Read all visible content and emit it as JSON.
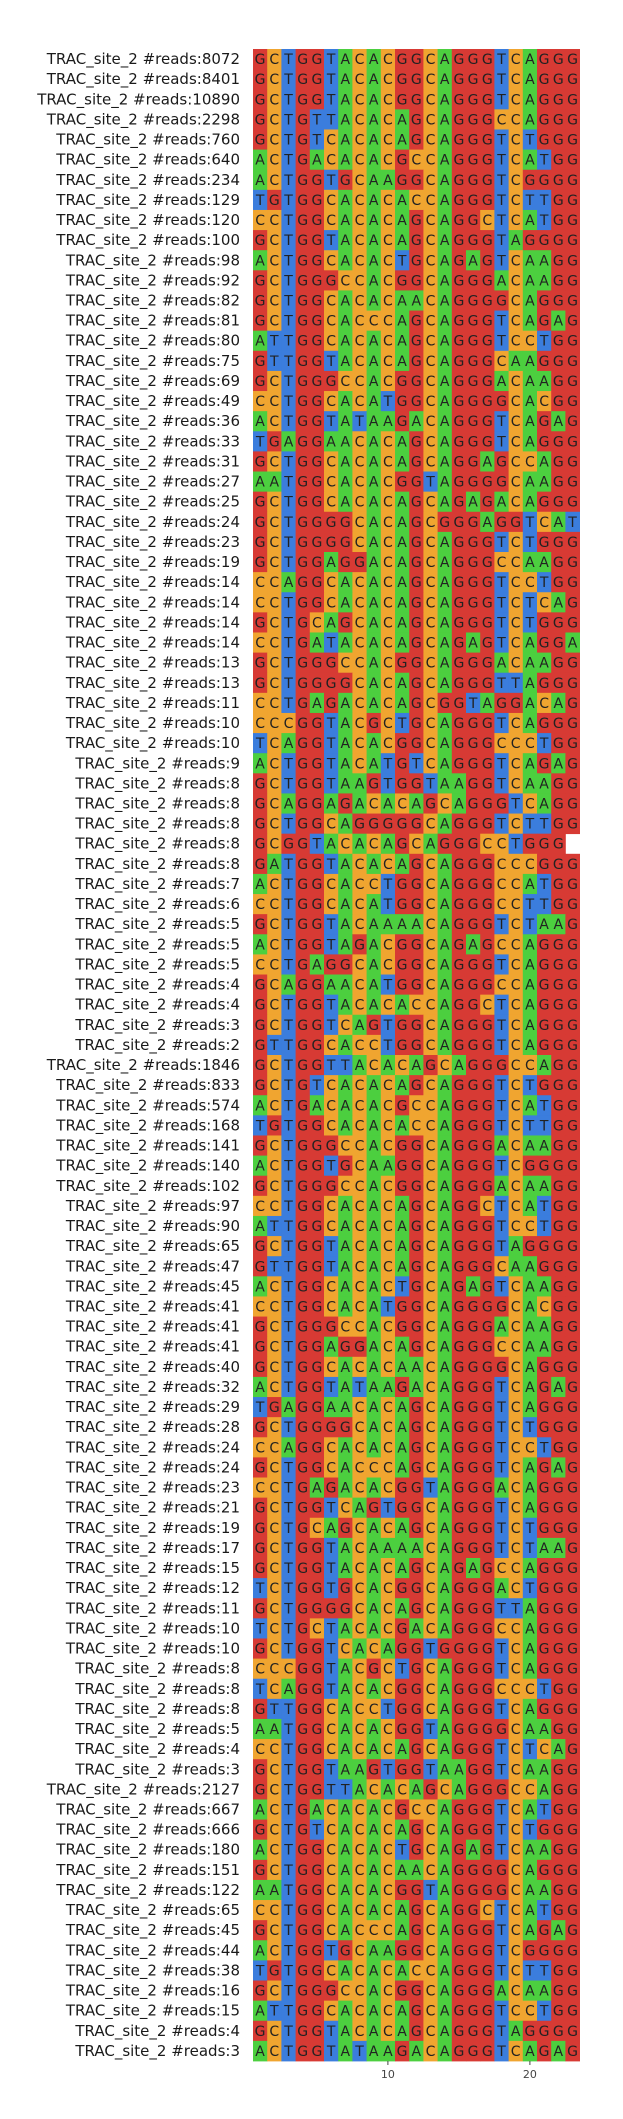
{
  "chart_data": {
    "type": "heatmap",
    "title": "",
    "xlabel": "",
    "ylabel": "",
    "x_ticks": [
      10,
      20
    ],
    "colors": {
      "A": "#4ccf3f",
      "C": "#f0a530",
      "G": "#d73a34",
      "T": "#3b7ddd"
    },
    "rows": [
      {
        "label": "TRAC_site_2 #reads:8072",
        "seq": "GCTGGTACACGGCAGGGTCAGGG"
      },
      {
        "label": "TRAC_site_2 #reads:8401",
        "seq": "GCTGGTACACGGCAGGGTCAGGG"
      },
      {
        "label": "TRAC_site_2 #reads:10890",
        "seq": "GCTGGTACACGGCAGGGTCAGGG"
      },
      {
        "label": "TRAC_site_2 #reads:2298",
        "seq": "GCTGTTACACAGCAGGGCCAGGG"
      },
      {
        "label": "TRAC_site_2 #reads:760",
        "seq": "GCTGTCACACAGCAGGGTCTGGG"
      },
      {
        "label": "TRAC_site_2 #reads:640",
        "seq": "ACTGACACACGCCAGGGTCATGG"
      },
      {
        "label": "TRAC_site_2 #reads:234",
        "seq": "ACTGGTGCAAGGCAGGGTCGGGG"
      },
      {
        "label": "TRAC_site_2 #reads:129",
        "seq": "TGTGGCACACACCAGGGTCTTGG"
      },
      {
        "label": "TRAC_site_2 #reads:120",
        "seq": "CCTGGCACACAGCAGGCTCATGG"
      },
      {
        "label": "TRAC_site_2 #reads:100",
        "seq": "GCTGGTACACAGCAGGGTAGGGG"
      },
      {
        "label": "TRAC_site_2 #reads:98",
        "seq": "ACTGGCACACTGCAGAGTCAAGG"
      },
      {
        "label": "TRAC_site_2 #reads:92",
        "seq": "GCTGGGCCACGGCAGGGACAAGG"
      },
      {
        "label": "TRAC_site_2 #reads:82",
        "seq": "GCTGGCACACAACAGGGGCAGGG"
      },
      {
        "label": "TRAC_site_2 #reads:81",
        "seq": "GCTGGCACCCAGCAGGGTCAGAG"
      },
      {
        "label": "TRAC_site_2 #reads:80",
        "seq": "ATTGGCACACAGCAGGGTCCTGG"
      },
      {
        "label": "TRAC_site_2 #reads:75",
        "seq": "GTTGGTACACAGCAGGGCAAGGG"
      },
      {
        "label": "TRAC_site_2 #reads:69",
        "seq": "GCTGGGCCACGGCAGGGACAAGG"
      },
      {
        "label": "TRAC_site_2 #reads:49",
        "seq": "CCTGGCACATGGCAGGGGCACGG"
      },
      {
        "label": "TRAC_site_2 #reads:36",
        "seq": "ACTGGTATAAGACAGGGTCAGAG"
      },
      {
        "label": "TRAC_site_2 #reads:33",
        "seq": "TGAGGAACACAGCAGGGTCAGGG"
      },
      {
        "label": "TRAC_site_2 #reads:31",
        "seq": "GCTGGCACACAGCAGGAGCCAGG"
      },
      {
        "label": "TRAC_site_2 #reads:27",
        "seq": "AATGGCACACGGTAGGGGCAAGG"
      },
      {
        "label": "TRAC_site_2 #reads:25",
        "seq": "GCTGGCACACAGCAGAGACAGGG"
      },
      {
        "label": "TRAC_site_2 #reads:24",
        "seq": "GCTGGGGCACAGCGGGAGGTCATGG"
      },
      {
        "label": "TRAC_site_2 #reads:23",
        "seq": "GCTGGGGCACAGCAGGGTCTGGG"
      },
      {
        "label": "TRAC_site_2 #reads:19",
        "seq": "GCTGGAGGACAGCAGGGCCAAGG"
      },
      {
        "label": "TRAC_site_2 #reads:14",
        "seq": "CCAGGCACACAGCAGGGTCCTGG"
      },
      {
        "label": "TRAC_site_2 #reads:14",
        "seq": "CCTGGCACACAGCAGGGTCTCAG"
      },
      {
        "label": "TRAC_site_2 #reads:14",
        "seq": "GCTGCAGCACAGCAGGGTCTGGG"
      },
      {
        "label": "TRAC_site_2 #reads:14",
        "seq": "CCTGATACACAGCAGAGTCAGGA"
      },
      {
        "label": "TRAC_site_2 #reads:13",
        "seq": "GCTGGGCCACGGCAGGGACAAGG"
      },
      {
        "label": "TRAC_site_2 #reads:13",
        "seq": "GCTGGGGCACAGCAGGGTTAGGG"
      },
      {
        "label": "TRAC_site_2 #reads:11",
        "seq": "CCTGAGACACAGCGGTAGGACAGGG"
      },
      {
        "label": "TRAC_site_2 #reads:10",
        "seq": "CCCGGTACGCTGCAGGGTCAGGG"
      },
      {
        "label": "TRAC_site_2 #reads:10",
        "seq": "TCAGGTACACGGCAGGGCCCTGG"
      },
      {
        "label": "TRAC_site_2 #reads:9",
        "seq": "ACTGGTACATGTCAGGGTCAGAG"
      },
      {
        "label": "TRAC_site_2 #reads:8",
        "seq": "GCTGGTAAGTGGTAAGGTCAAGG"
      },
      {
        "label": "TRAC_site_2 #reads:8",
        "seq": "GCAGGAGACACAGCAGGGTCAGGG"
      },
      {
        "label": "TRAC_site_2 #reads:8",
        "seq": "GCTGGCAGGGGGCAGGGTCTTGG"
      },
      {
        "label": "TRAC_site_2 #reads:8",
        "seq": "GCGGTACACAGCAGGGCCTGGG"
      },
      {
        "label": "TRAC_site_2 #reads:8",
        "seq": "GATGGTACACAGCAGGGCCCGGG"
      },
      {
        "label": "TRAC_site_2 #reads:7",
        "seq": "ACTGGCACCTGGCAGGGCCATGG"
      },
      {
        "label": "TRAC_site_2 #reads:6",
        "seq": "CCTGGCACATGGCAGGGCCTTGG"
      },
      {
        "label": "TRAC_site_2 #reads:5",
        "seq": "GCTGGTACAAAACAGGGTCTAAG"
      },
      {
        "label": "TRAC_site_2 #reads:5",
        "seq": "ACTGGTAGACGGCAGAGCCAGGG"
      },
      {
        "label": "TRAC_site_2 #reads:5",
        "seq": "CCTGAGGCACGGCAGGGTCAGGG"
      },
      {
        "label": "TRAC_site_2 #reads:4",
        "seq": "GCAGGAACATGGCAGGGCCAGGG"
      },
      {
        "label": "TRAC_site_2 #reads:4",
        "seq": "GCTGGTACACACCAGGCTCAGGG"
      },
      {
        "label": "TRAC_site_2 #reads:3",
        "seq": "GCTGGTCAGTGGCAGGGTCAGGG"
      },
      {
        "label": "TRAC_site_2 #reads:2",
        "seq": "GTTGGCACCTGGCAGGGTCAGGG"
      },
      {
        "label": "TRAC_site_2 #reads:1846",
        "seq": "GCTGGTTACACAGCAGGGCCAGGG"
      },
      {
        "label": "TRAC_site_2 #reads:833",
        "seq": "GCTGTCACACAGCAGGGTCTGGG"
      },
      {
        "label": "TRAC_site_2 #reads:574",
        "seq": "ACTGACACACGCCAGGGTCATGG"
      },
      {
        "label": "TRAC_site_2 #reads:168",
        "seq": "TGTGGCACACACCAGGGTCTTGG"
      },
      {
        "label": "TRAC_site_2 #reads:141",
        "seq": "GCTGGGCCACGGCAGGGACAAGG"
      },
      {
        "label": "TRAC_site_2 #reads:140",
        "seq": "ACTGGTGCAAGGCAGGGTCGGGG"
      },
      {
        "label": "TRAC_site_2 #reads:102",
        "seq": "GCTGGGCCACGGCAGGGACAAGG"
      },
      {
        "label": "TRAC_site_2 #reads:97",
        "seq": "CCTGGCACACAGCAGGCTCATGG"
      },
      {
        "label": "TRAC_site_2 #reads:90",
        "seq": "ATTGGCACACAGCAGGGTCCTGG"
      },
      {
        "label": "TRAC_site_2 #reads:65",
        "seq": "GCTGGTACACAGCAGGGTAGGGG"
      },
      {
        "label": "TRAC_site_2 #reads:47",
        "seq": "GTTGGTACACAGCAGGGCAAGGG"
      },
      {
        "label": "TRAC_site_2 #reads:45",
        "seq": "ACTGGCACACTGCAGAGTCAAGG"
      },
      {
        "label": "TRAC_site_2 #reads:41",
        "seq": "CCTGGCACATGGCAGGGGCACGG"
      },
      {
        "label": "TRAC_site_2 #reads:41",
        "seq": "GCTGGGCCACGGCAGGGACAAGG"
      },
      {
        "label": "TRAC_site_2 #reads:41",
        "seq": "GCTGGAGGACAGCAGGGCCAAGG"
      },
      {
        "label": "TRAC_site_2 #reads:40",
        "seq": "GCTGGCACACAACAGGGGCAGGG"
      },
      {
        "label": "TRAC_site_2 #reads:32",
        "seq": "ACTGGTATAAGACAGGGTCAGAG"
      },
      {
        "label": "TRAC_site_2 #reads:29",
        "seq": "TGAGGAACACAGCAGGGTCAGGG"
      },
      {
        "label": "TRAC_site_2 #reads:28",
        "seq": "GCTGGGGCACAGCAGGGTCTGGG"
      },
      {
        "label": "TRAC_site_2 #reads:24",
        "seq": "CCAGGCACACAGCAGGGTCCTGG"
      },
      {
        "label": "TRAC_site_2 #reads:24",
        "seq": "GCTGGCACCCAGCAGGGTCAGAG"
      },
      {
        "label": "TRAC_site_2 #reads:23",
        "seq": "CCTGAGACACGGTAGGGACAGGG"
      },
      {
        "label": "TRAC_site_2 #reads:21",
        "seq": "GCTGGTCAGTGGCAGGGTCAGGG"
      },
      {
        "label": "TRAC_site_2 #reads:19",
        "seq": "GCTGCAGCACAGCAGGGTCTGGG"
      },
      {
        "label": "TRAC_site_2 #reads:17",
        "seq": "GCTGGTACAAAACAGGGTCTAAG"
      },
      {
        "label": "TRAC_site_2 #reads:15",
        "seq": "GCTGGTACACAGCAGAGCCAGGG"
      },
      {
        "label": "TRAC_site_2 #reads:12",
        "seq": "TCTGGTGCACGGCAGGGACTGGG"
      },
      {
        "label": "TRAC_site_2 #reads:11",
        "seq": "GCTGGGGCACAGCAGGGTTAGGG"
      },
      {
        "label": "TRAC_site_2 #reads:10",
        "seq": "TCTGCTACACGACAGGGCCAGGG"
      },
      {
        "label": "TRAC_site_2 #reads:10",
        "seq": "GCTGGTCACAGGTGGGGTCAGGG"
      },
      {
        "label": "TRAC_site_2 #reads:8",
        "seq": "CCCGGTACGCTGCAGGGTCAGGG"
      },
      {
        "label": "TRAC_site_2 #reads:8",
        "seq": "TCAGGTACACGGCAGGGCCCTGG"
      },
      {
        "label": "TRAC_site_2 #reads:8",
        "seq": "GTTGGCACCTGGCAGGGTCAGGG"
      },
      {
        "label": "TRAC_site_2 #reads:5",
        "seq": "AATGGCACACGGTAGGGGCAAGG"
      },
      {
        "label": "TRAC_site_2 #reads:4",
        "seq": "CCTGGCACACAGCAGGGTCTCAG"
      },
      {
        "label": "TRAC_site_2 #reads:3",
        "seq": "GCTGGTAAGTGGTAAGGTCAAGG"
      },
      {
        "label": "TRAC_site_2 #reads:2127",
        "seq": "GCTGGTTACACAGCAGGGCCAGGG"
      },
      {
        "label": "TRAC_site_2 #reads:667",
        "seq": "ACTGACACACGCCAGGGTCATGG"
      },
      {
        "label": "TRAC_site_2 #reads:666",
        "seq": "GCTGTCACACAGCAGGGTCTGGG"
      },
      {
        "label": "TRAC_site_2 #reads:180",
        "seq": "ACTGGCACACTGCAGAGTCAAGG"
      },
      {
        "label": "TRAC_site_2 #reads:151",
        "seq": "GCTGGCACACAACAGGGGCAGGG"
      },
      {
        "label": "TRAC_site_2 #reads:122",
        "seq": "AATGGCACACGGTAGGGGCAAGG"
      },
      {
        "label": "TRAC_site_2 #reads:65",
        "seq": "CCTGGCACACAGCAGGCTCATGG"
      },
      {
        "label": "TRAC_site_2 #reads:45",
        "seq": "GCTGGCACCCAGCAGGGTCAGAG"
      },
      {
        "label": "TRAC_site_2 #reads:44",
        "seq": "ACTGGTGCAAGGCAGGGTCGGGG"
      },
      {
        "label": "TRAC_site_2 #reads:38",
        "seq": "TGTGGCACACACCAGGGTCTTGG"
      },
      {
        "label": "TRAC_site_2 #reads:16",
        "seq": "GCTGGGCCACGGCAGGGACAAGG"
      },
      {
        "label": "TRAC_site_2 #reads:15",
        "seq": "ATTGGCACACAGCAGGGTCCTGG"
      },
      {
        "label": "TRAC_site_2 #reads:4",
        "seq": "GCTGGTACACAGCAGGGTAGGGG"
      },
      {
        "label": "TRAC_site_2 #reads:3",
        "seq": "ACTGGTATAAGACAGGGTCAGAG"
      }
    ]
  }
}
